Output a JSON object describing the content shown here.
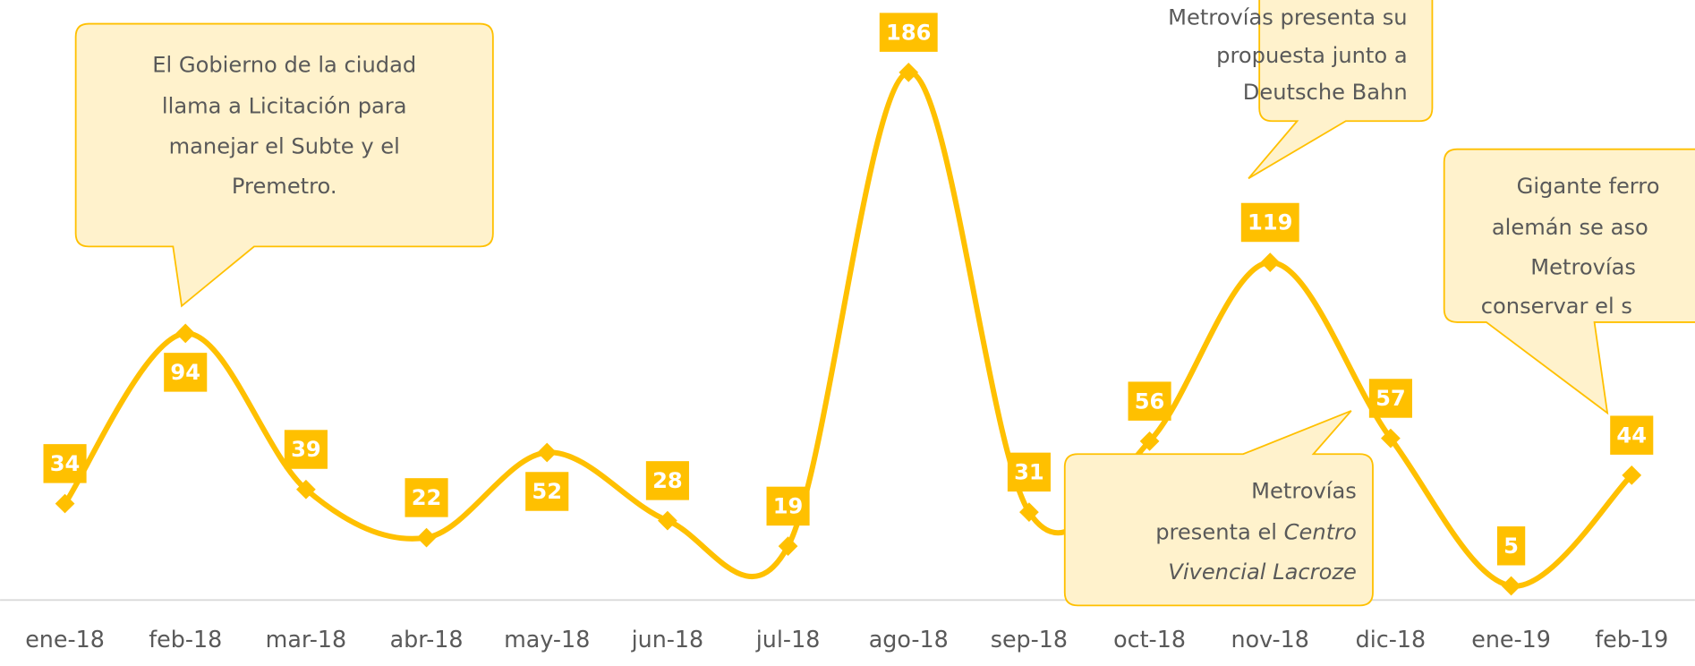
{
  "chart_data": {
    "type": "line",
    "categories": [
      "ene-18",
      "feb-18",
      "mar-18",
      "abr-18",
      "may-18",
      "jun-18",
      "jul-18",
      "ago-18",
      "sep-18",
      "oct-18",
      "nov-18",
      "dic-18",
      "ene-19",
      "feb-19"
    ],
    "series": [
      {
        "color": "#FFC000",
        "values": [
          34,
          94,
          39,
          22,
          52,
          28,
          19,
          186,
          31,
          56,
          119,
          57,
          5,
          44
        ]
      }
    ],
    "ylim": [
      0,
      211.5
    ],
    "smooth": true,
    "data_labels": true,
    "annotations": [
      {
        "lines": [
          "El Gobierno de la ciudad",
          "llama a Licitación para",
          "manejar el Subte y el",
          "Premetro."
        ]
      },
      {
        "lines": [
          "Metrovías presenta su",
          "propuesta junto a",
          "Deutsche Bahn"
        ]
      },
      {
        "lines": [
          "Gigante ferro",
          "alemán se aso",
          "Metrovías",
          "conservar el s"
        ]
      },
      {
        "lines": [
          [
            "Metrovías"
          ],
          [
            "presenta el ",
            "Centro"
          ],
          [
            "Vivencial Lacroze"
          ]
        ],
        "italic": [
          [
            false
          ],
          [
            false,
            true
          ],
          [
            true
          ]
        ]
      }
    ]
  }
}
